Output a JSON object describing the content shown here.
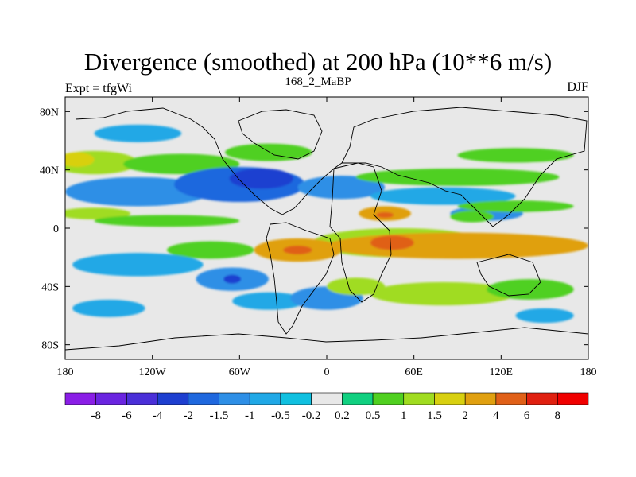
{
  "chart_data": {
    "type": "heatmap",
    "title": "Divergence (smoothed) at 200 hPa (10**6 m/s)",
    "subtitle_left": "Expt = tfgWi",
    "subtitle_center": "168_2_MaBP",
    "subtitle_right": "DJF",
    "x_ticks": [
      {
        "value": -180,
        "label": "180"
      },
      {
        "value": -120,
        "label": "120W"
      },
      {
        "value": -60,
        "label": "60W"
      },
      {
        "value": 0,
        "label": "0"
      },
      {
        "value": 60,
        "label": "60E"
      },
      {
        "value": 120,
        "label": "120E"
      },
      {
        "value": 180,
        "label": "180"
      }
    ],
    "y_ticks": [
      {
        "value": 80,
        "label": "80N"
      },
      {
        "value": 40,
        "label": "40N"
      },
      {
        "value": 0,
        "label": "0"
      },
      {
        "value": -40,
        "label": "40S"
      },
      {
        "value": -80,
        "label": "80S"
      }
    ],
    "xlim": [
      -180,
      180
    ],
    "ylim": [
      -90,
      90
    ],
    "colorbar": {
      "levels": [
        "-8",
        "-6",
        "-4",
        "-2",
        "-1.5",
        "-1",
        "-0.5",
        "-0.2",
        "0.2",
        "0.5",
        "1",
        "1.5",
        "2",
        "4",
        "6",
        "8"
      ],
      "colors": [
        "#8a1ee6",
        "#6a24e0",
        "#4a2fd8",
        "#1e3fd0",
        "#1f68de",
        "#2e8fe6",
        "#20a8e6",
        "#10c0e0",
        "#e8e8e8",
        "#10d080",
        "#50d020",
        "#a0dc20",
        "#d8d010",
        "#e0a010",
        "#e06018",
        "#e02010",
        "#f00000"
      ]
    },
    "regions": [
      {
        "lon": -160,
        "lat": 45,
        "rx": 30,
        "ry": 8,
        "value": 1.2
      },
      {
        "lon": -172,
        "lat": 47,
        "rx": 12,
        "ry": 5,
        "value": 1.8
      },
      {
        "lon": -100,
        "lat": 44,
        "rx": 40,
        "ry": 7,
        "value": 0.8
      },
      {
        "lon": -40,
        "lat": 52,
        "rx": 30,
        "ry": 6,
        "value": 0.7
      },
      {
        "lon": -130,
        "lat": 65,
        "rx": 30,
        "ry": 6,
        "value": -0.8
      },
      {
        "lon": -130,
        "lat": 25,
        "rx": 50,
        "ry": 10,
        "value": -1.3
      },
      {
        "lon": -60,
        "lat": 30,
        "rx": 45,
        "ry": 12,
        "value": -1.8
      },
      {
        "lon": -45,
        "lat": 34,
        "rx": 22,
        "ry": 7,
        "value": -3
      },
      {
        "lon": 10,
        "lat": 28,
        "rx": 30,
        "ry": 8,
        "value": -1.5
      },
      {
        "lon": 80,
        "lat": 22,
        "rx": 50,
        "ry": 6,
        "value": -0.8
      },
      {
        "lon": 110,
        "lat": 10,
        "rx": 25,
        "ry": 5,
        "value": -1.2
      },
      {
        "lon": -160,
        "lat": 10,
        "rx": 25,
        "ry": 4,
        "value": 1.2
      },
      {
        "lon": -110,
        "lat": 5,
        "rx": 50,
        "ry": 4,
        "value": 0.6
      },
      {
        "lon": 90,
        "lat": 35,
        "rx": 70,
        "ry": 6,
        "value": 0.8
      },
      {
        "lon": 130,
        "lat": 50,
        "rx": 40,
        "ry": 5,
        "value": 0.9
      },
      {
        "lon": 40,
        "lat": 10,
        "rx": 18,
        "ry": 5,
        "value": 2.5
      },
      {
        "lon": 40,
        "lat": 9,
        "rx": 6,
        "ry": 2,
        "value": 4.5
      },
      {
        "lon": 100,
        "lat": 8,
        "rx": 15,
        "ry": 4,
        "value": 0.8
      },
      {
        "lon": 130,
        "lat": 15,
        "rx": 40,
        "ry": 4,
        "value": 0.7
      },
      {
        "lon": 50,
        "lat": -10,
        "rx": 60,
        "ry": 10,
        "value": 1.2
      },
      {
        "lon": 90,
        "lat": -12,
        "rx": 90,
        "ry": 9,
        "value": 2.2
      },
      {
        "lon": 45,
        "lat": -10,
        "rx": 15,
        "ry": 5,
        "value": 4.5
      },
      {
        "lon": -20,
        "lat": -15,
        "rx": 30,
        "ry": 8,
        "value": 2.2
      },
      {
        "lon": -20,
        "lat": -15,
        "rx": 10,
        "ry": 3,
        "value": 4.5
      },
      {
        "lon": -80,
        "lat": -15,
        "rx": 30,
        "ry": 6,
        "value": 0.8
      },
      {
        "lon": -130,
        "lat": -25,
        "rx": 45,
        "ry": 8,
        "value": -0.7
      },
      {
        "lon": -65,
        "lat": -35,
        "rx": 25,
        "ry": 8,
        "value": -1.3
      },
      {
        "lon": -65,
        "lat": -35,
        "rx": 6,
        "ry": 3,
        "value": -3
      },
      {
        "lon": -40,
        "lat": -50,
        "rx": 25,
        "ry": 6,
        "value": -0.6
      },
      {
        "lon": 0,
        "lat": -48,
        "rx": 25,
        "ry": 8,
        "value": -1.2
      },
      {
        "lon": 20,
        "lat": -40,
        "rx": 20,
        "ry": 6,
        "value": 1.1
      },
      {
        "lon": 80,
        "lat": -45,
        "rx": 50,
        "ry": 8,
        "value": 1.2
      },
      {
        "lon": 140,
        "lat": -42,
        "rx": 30,
        "ry": 7,
        "value": 0.7
      },
      {
        "lon": -150,
        "lat": -55,
        "rx": 25,
        "ry": 6,
        "value": -0.6
      },
      {
        "lon": 150,
        "lat": -60,
        "rx": 20,
        "ry": 5,
        "value": -0.6
      }
    ]
  }
}
